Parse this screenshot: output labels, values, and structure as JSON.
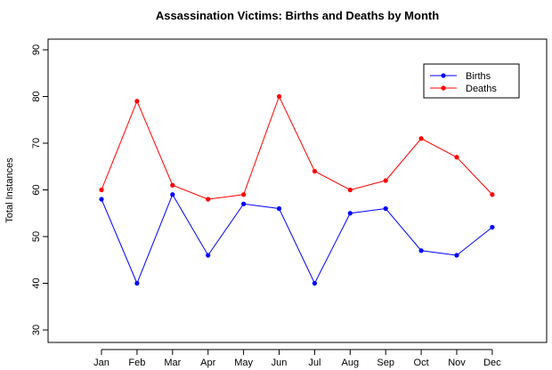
{
  "chart_data": {
    "type": "line",
    "title": "Assassination Victims: Births and Deaths by Month",
    "xlabel": "",
    "ylabel": "Total Instances",
    "categories": [
      "Jan",
      "Feb",
      "Mar",
      "Apr",
      "May",
      "Jun",
      "Jul",
      "Aug",
      "Sep",
      "Oct",
      "Nov",
      "Dec"
    ],
    "ylim": [
      30,
      90
    ],
    "yticks": [
      30,
      40,
      50,
      60,
      70,
      80,
      90
    ],
    "grid": false,
    "legend_position": "top-right",
    "series": [
      {
        "name": "Births",
        "color": "#0000ff",
        "values": [
          58,
          40,
          59,
          46,
          57,
          56,
          40,
          55,
          56,
          47,
          46,
          52
        ]
      },
      {
        "name": "Deaths",
        "color": "#ff0000",
        "values": [
          60,
          79,
          61,
          58,
          59,
          80,
          64,
          60,
          62,
          71,
          67,
          59
        ]
      }
    ]
  }
}
